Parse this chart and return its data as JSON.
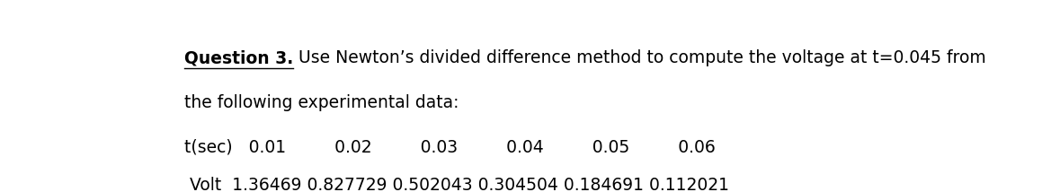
{
  "line1_bold": "Question 3.",
  "line1_normal": " Use Newton’s divided difference method to compute the voltage at t=0.045 from",
  "line2": "the following experimental data:",
  "line3": "t(sec)   0.01         0.02         0.03         0.04         0.05         0.06",
  "line4": " Volt  1.36469 0.827729 0.502043 0.304504 0.184691 0.112021",
  "font_size": 13.5,
  "bg_color": "#ffffff",
  "text_color": "#000000"
}
